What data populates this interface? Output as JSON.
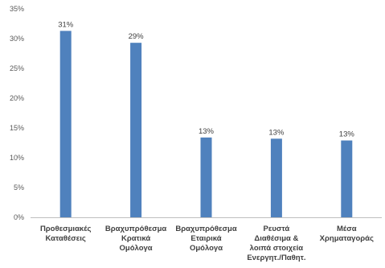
{
  "chart_data": {
    "type": "bar",
    "title": "",
    "xlabel": "",
    "ylabel": "",
    "ylim": [
      0,
      35
    ],
    "y_ticks": [
      0,
      5,
      10,
      15,
      20,
      25,
      30,
      35
    ],
    "y_tick_format": "percent",
    "grid": false,
    "legend": "none",
    "bar_color": "#4f81bd",
    "axis_color": "#bfbfbf",
    "categories": [
      [
        "Προθεσμιακές",
        "Καταθέσεις"
      ],
      [
        "Βραχυπρόθεσμα",
        "Κρατικά",
        "Ομόλογα"
      ],
      [
        "Βραχυπρόθεσμα",
        "Εταιρικά",
        "Ομόλογα"
      ],
      [
        "Ρευστά",
        "Διαθέσιμα &",
        "λοιπά στοιχεία",
        "Ενεργητ./Παθητ."
      ],
      [
        "Μέσα",
        "Χρηματαγοράς"
      ]
    ],
    "values": [
      31.3,
      29.3,
      13.4,
      13.2,
      12.9
    ],
    "data_labels": [
      "31%",
      "29%",
      "13%",
      "13%",
      "13%"
    ]
  }
}
